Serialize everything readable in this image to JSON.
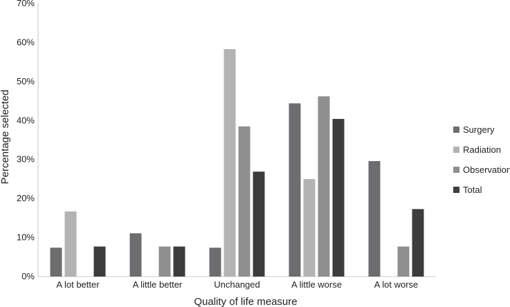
{
  "chart_data": {
    "type": "bar",
    "title": "",
    "xlabel": "Quality of life measure",
    "ylabel": "Percentage selected",
    "ylim": [
      0,
      70
    ],
    "yticks": [
      0,
      10,
      20,
      30,
      40,
      50,
      60,
      70
    ],
    "ytick_suffix": "%",
    "grid": false,
    "legend_position": "right",
    "categories": [
      "A lot better",
      "A little better",
      "Unchanged",
      "A little worse",
      "A lot worse"
    ],
    "series": [
      {
        "name": "Surgery",
        "color": "#6d6d6f",
        "values": [
          7.4,
          11.1,
          7.4,
          44.4,
          29.6
        ]
      },
      {
        "name": "Radiation",
        "color": "#b3b3b3",
        "values": [
          16.7,
          0,
          58.3,
          25.0,
          0
        ]
      },
      {
        "name": "Observation",
        "color": "#8f8f8f",
        "values": [
          0,
          7.7,
          38.5,
          46.2,
          7.7
        ]
      },
      {
        "name": "Total",
        "color": "#3c3c3c",
        "values": [
          7.7,
          7.7,
          26.9,
          40.4,
          17.3
        ]
      }
    ]
  }
}
